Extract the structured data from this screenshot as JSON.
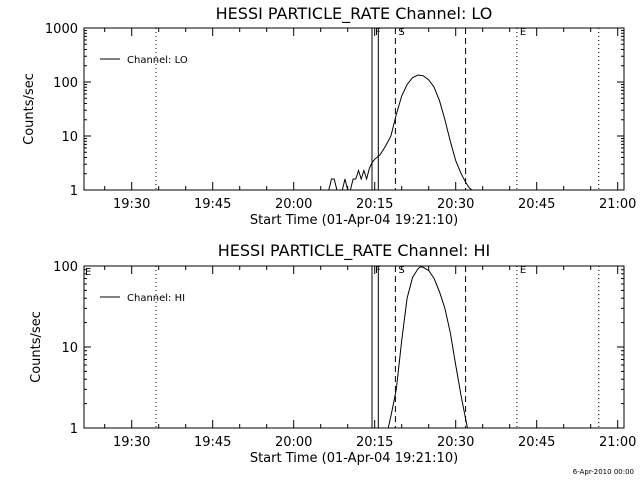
{
  "chart_data": [
    {
      "type": "line",
      "scale": "log",
      "title": "HESSI PARTICLE_RATE Channel: LO",
      "xlabel": "Start Time (01-Apr-04 19:21:10)",
      "ylabel": "Counts/sec",
      "xlim": [
        "19:21:10",
        "21:01:10"
      ],
      "ylim": [
        1,
        1000
      ],
      "x_ticks": [
        "19:30",
        "19:45",
        "20:00",
        "20:15",
        "20:30",
        "20:45",
        "21:00"
      ],
      "y_ticks": [
        "1",
        "10",
        "100",
        "1000"
      ],
      "legend": "top-left",
      "series": [
        {
          "name": "Channel: LO",
          "x": [
            "20:06:30",
            "20:07:00",
            "20:07:30",
            "20:08:00",
            "20:08:30",
            "20:09:00",
            "20:09:30",
            "20:10:00",
            "20:10:30",
            "20:11:00",
            "20:11:30",
            "20:12:00",
            "20:12:30",
            "20:13:00",
            "20:13:30",
            "20:14:00",
            "20:14:30",
            "20:15:00",
            "20:16:00",
            "20:17:00",
            "20:18:00",
            "20:19:00",
            "20:20:00",
            "20:21:00",
            "20:22:00",
            "20:23:00",
            "20:24:00",
            "20:25:00",
            "20:26:00",
            "20:27:00",
            "20:28:00",
            "20:29:00",
            "20:30:00",
            "20:31:00",
            "20:32:00",
            "20:32:30",
            "20:33:00"
          ],
          "y": [
            1,
            1.6,
            1.6,
            1,
            1,
            1,
            1.6,
            1,
            1,
            1.6,
            1.6,
            2.3,
            1.6,
            2.3,
            1.6,
            2.5,
            3.2,
            3.7,
            4.5,
            6.5,
            10,
            25,
            55,
            90,
            120,
            135,
            130,
            110,
            80,
            45,
            20,
            8,
            3.5,
            2,
            1.3,
            1.1,
            1
          ]
        }
      ],
      "markers": [
        {
          "label": "F",
          "x": "20:14:30",
          "style": "solid"
        },
        {
          "label": "",
          "x": "20:15:40",
          "style": "solid"
        },
        {
          "label": "S",
          "x": "20:18:50",
          "style": "dashed"
        },
        {
          "label": "",
          "x": "20:31:50",
          "style": "dashed"
        },
        {
          "label": "",
          "x": "19:34:30",
          "style": "dotted"
        },
        {
          "label": "E",
          "x": "20:41:20",
          "style": "dotted"
        },
        {
          "label": "",
          "x": "20:56:30",
          "style": "dotted"
        }
      ]
    },
    {
      "type": "line",
      "scale": "log",
      "title": "HESSI PARTICLE_RATE Channel: HI",
      "xlabel": "Start Time (01-Apr-04 19:21:10)",
      "ylabel": "Counts/sec",
      "xlim": [
        "19:21:10",
        "21:01:10"
      ],
      "ylim": [
        1,
        100
      ],
      "x_ticks": [
        "19:30",
        "19:45",
        "20:00",
        "20:15",
        "20:30",
        "20:45",
        "21:00"
      ],
      "y_ticks": [
        "1",
        "10",
        "100"
      ],
      "legend": "top-left",
      "left_marker_label": "E",
      "series": [
        {
          "name": "Channel: HI",
          "x": [
            "20:17:30",
            "20:18:00",
            "20:19:00",
            "20:20:00",
            "20:21:00",
            "20:22:00",
            "20:23:00",
            "20:23:30",
            "20:24:00",
            "20:25:00",
            "20:26:00",
            "20:27:00",
            "20:28:00",
            "20:29:00",
            "20:30:00",
            "20:31:00",
            "20:31:50",
            "20:32:10"
          ],
          "y": [
            1,
            1.4,
            3,
            12,
            40,
            72,
            92,
            98,
            96,
            88,
            70,
            48,
            30,
            15,
            6,
            2.5,
            1.3,
            1
          ]
        }
      ],
      "markers": [
        {
          "label": "F",
          "x": "20:14:30",
          "style": "solid"
        },
        {
          "label": "",
          "x": "20:15:40",
          "style": "solid"
        },
        {
          "label": "S",
          "x": "20:18:50",
          "style": "dashed"
        },
        {
          "label": "",
          "x": "20:31:50",
          "style": "dashed"
        },
        {
          "label": "",
          "x": "19:34:30",
          "style": "dotted"
        },
        {
          "label": "E",
          "x": "20:41:20",
          "style": "dotted"
        },
        {
          "label": "",
          "x": "20:56:30",
          "style": "dotted"
        }
      ]
    }
  ],
  "footer": {
    "stamp": "6-Apr-2010 00:00"
  }
}
